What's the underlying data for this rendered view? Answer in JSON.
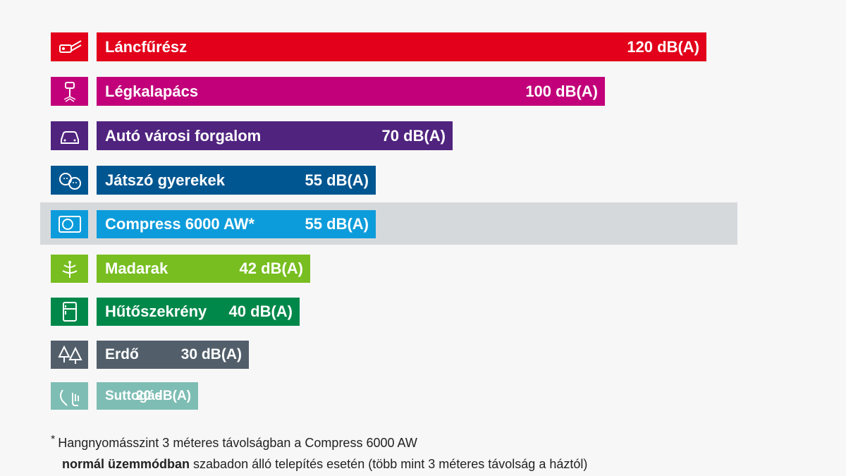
{
  "chart_data": {
    "type": "bar",
    "orientation": "horizontal",
    "unit": "dB(A)",
    "highlight_index": 4,
    "items": [
      {
        "label": "Láncfűrész",
        "value": 120,
        "value_label": "120 dB(A)",
        "color": "#e2001a",
        "icon": "chainsaw-icon"
      },
      {
        "label": "Légkalapács",
        "value": 100,
        "value_label": "100 dB(A)",
        "color": "#c2007a",
        "icon": "jackhammer-icon"
      },
      {
        "label": "Autó városi forgalom",
        "value": 70,
        "value_label": "70 dB(A)",
        "color": "#50237f",
        "icon": "car-icon"
      },
      {
        "label": "Játszó gyerekek",
        "value": 55,
        "value_label": "55 dB(A)",
        "color": "#005691",
        "icon": "children-icon"
      },
      {
        "label": "Compress 6000 AW*",
        "value": 55,
        "value_label": "55 dB(A)",
        "color": "#0d9cdb",
        "icon": "heat-pump-icon"
      },
      {
        "label": "Madarak",
        "value": 42,
        "value_label": "42 dB(A)",
        "color": "#78be20",
        "icon": "bird-icon"
      },
      {
        "label": "Hűtőszekrény",
        "value": 40,
        "value_label": "40 dB(A)",
        "color": "#00884a",
        "icon": "fridge-icon"
      },
      {
        "label": "Erdő",
        "value": 30,
        "value_label": "30 dB(A)",
        "color": "#525f6b",
        "icon": "forest-icon"
      },
      {
        "label": "Suttogás",
        "value": 20,
        "value_label": "20 dB(A)",
        "color": "#7ebdb4",
        "icon": "whisper-icon"
      }
    ]
  },
  "footnote": {
    "star": "*",
    "line1": "Hangnyomásszint 3 méteres távolságban a Compress 6000 AW",
    "line2_bold": "normál üzemmódban",
    "line2_rest": " szabadon álló telepítés esetén (több mint 3 méteres távolság a háztól)"
  }
}
